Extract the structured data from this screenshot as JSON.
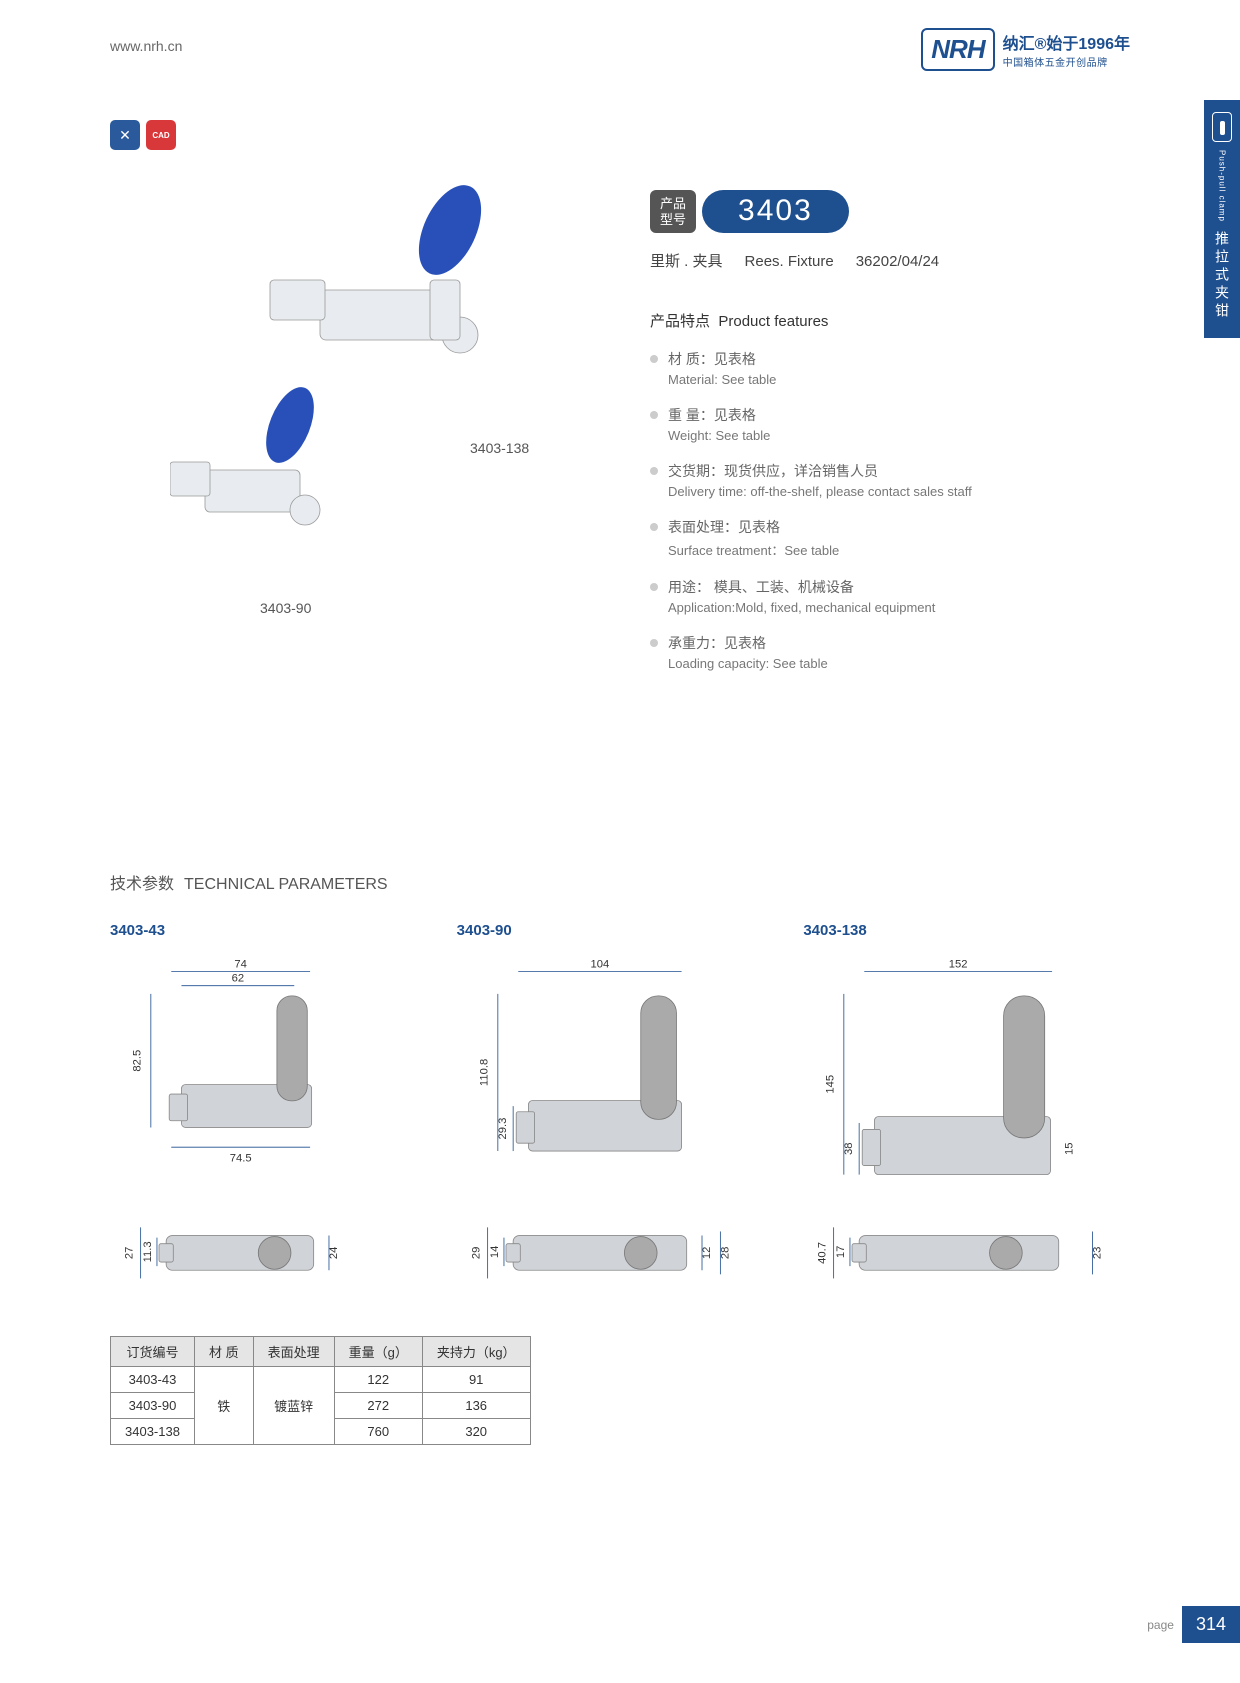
{
  "header": {
    "url": "www.nrh.cn"
  },
  "logo": {
    "brand": "NRH",
    "cn": "纳汇®始于1996年",
    "sub": "中国箱体五金开创品牌"
  },
  "sidetab": {
    "en": "Push-pull clamp",
    "cn": "推拉式夹钳"
  },
  "badges": {
    "b1": "✕",
    "b2": "CAD"
  },
  "imglabels": {
    "large": "3403-138",
    "small": "3403-90"
  },
  "model": {
    "label_l1": "产品",
    "label_l2": "型号",
    "number": "3403"
  },
  "subtitle": {
    "cn": "里斯 . 夹具",
    "en": "Rees. Fixture",
    "code": "36202/04/24"
  },
  "features": {
    "title_cn": "产品特点",
    "title_en": "Product features",
    "items": [
      {
        "cn": "材 质：见表格",
        "en": "Material: See table"
      },
      {
        "cn": "重 量：见表格",
        "en": "Weight: See table"
      },
      {
        "cn": "交货期：现货供应，详洽销售人员",
        "en": "Delivery time: off-the-shelf, please contact sales staff"
      },
      {
        "cn": "表面处理：见表格",
        "en": "Surface treatment：See table"
      },
      {
        "cn": "用途： 模具、工装、机械设备",
        "en": "Application:Mold, fixed, mechanical equipment"
      },
      {
        "cn": "承重力：见表格",
        "en": "Loading capacity: See table"
      }
    ]
  },
  "tech": {
    "title_cn": "技术参数",
    "title_en": "TECHNICAL PARAMETERS",
    "variants": [
      {
        "label": "3403-43",
        "dim_w1": "74",
        "dim_w2": "62",
        "dim_h": "82.5",
        "dim_b": "74.5",
        "sv_h": "27",
        "sv_a": "11.3",
        "sv_b": "24"
      },
      {
        "label": "3403-90",
        "dim_w1": "104",
        "dim_h": "110.8",
        "dim_h2": "29.3",
        "sv_h": "29",
        "sv_a": "14",
        "sv_b": "12",
        "sv_c": "28"
      },
      {
        "label": "3403-138",
        "dim_w1": "152",
        "dim_h": "145",
        "dim_h2": "38",
        "dim_r": "15",
        "sv_h": "40.7",
        "sv_a": "17",
        "sv_c": "23"
      }
    ]
  },
  "table": {
    "headers": [
      "订货编号",
      "材 质",
      "表面处理",
      "重量（g）",
      "夹持力（kg）"
    ],
    "material": "铁",
    "surface": "镀蓝锌",
    "rows": [
      {
        "code": "3403-43",
        "weight": "122",
        "force": "91"
      },
      {
        "code": "3403-90",
        "weight": "272",
        "force": "136"
      },
      {
        "code": "3403-138",
        "weight": "760",
        "force": "320"
      }
    ]
  },
  "footer": {
    "label": "page",
    "num": "314"
  }
}
